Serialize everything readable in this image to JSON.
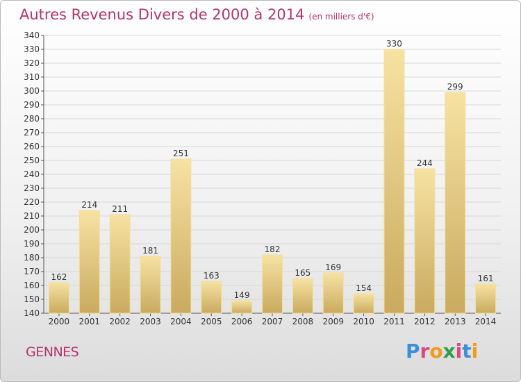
{
  "header": {
    "title": "Autres Revenus Divers de 2000 à 2014",
    "unit": "(en milliers d'€)"
  },
  "footer": {
    "location": "GENNES",
    "brand": "Proxiti",
    "brand_letter_colors": [
      "#3b8fd6",
      "#e0457b",
      "#f29a1e",
      "#2f9e47",
      "#e0457b",
      "#3b8fd6",
      "#f29a1e"
    ]
  },
  "colors": {
    "title": "#b4336c",
    "bar_light": "#f7e2a3",
    "bar_dark": "#c9aa5e",
    "grid": "#d6d6d6"
  },
  "chart_data": {
    "type": "bar",
    "categories": [
      "2000",
      "2001",
      "2002",
      "2003",
      "2004",
      "2005",
      "2006",
      "2007",
      "2008",
      "2009",
      "2010",
      "2011",
      "2012",
      "2013",
      "2014"
    ],
    "values": [
      162,
      214,
      211,
      181,
      251,
      163,
      149,
      182,
      165,
      169,
      154,
      330,
      244,
      299,
      161
    ],
    "title": "Autres Revenus Divers de 2000 à 2014",
    "ylim": [
      140,
      340
    ],
    "ytick_step": 10,
    "grid": true
  }
}
